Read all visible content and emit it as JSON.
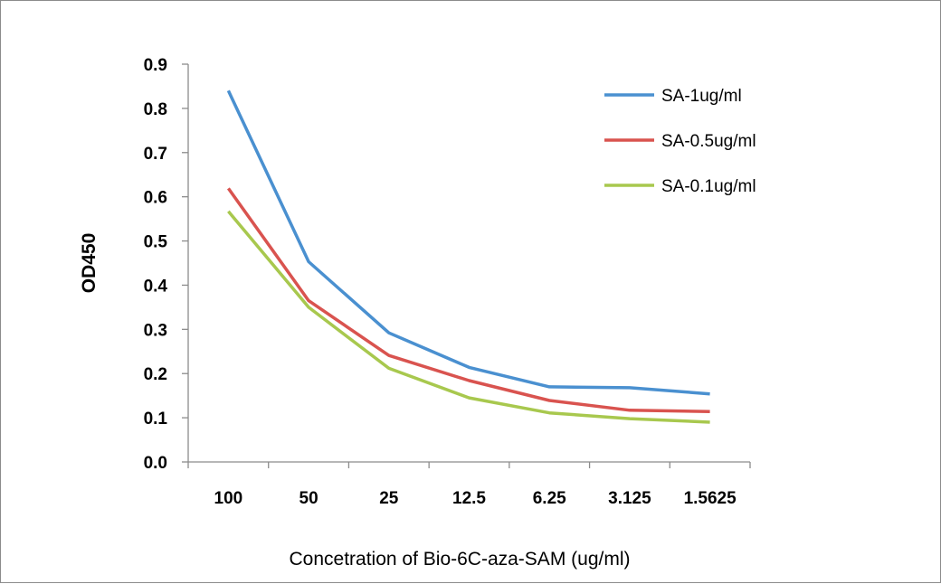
{
  "chart_data": {
    "type": "line",
    "xlabel": "Concetration of Bio-6C-aza-SAM (ug/ml)",
    "ylabel": "OD450",
    "categories": [
      "100",
      "50",
      "25",
      "12.5",
      "6.25",
      "3.125",
      "1.5625"
    ],
    "ylim": [
      0,
      0.9
    ],
    "yticks": [
      "0.0",
      "0.1",
      "0.2",
      "0.3",
      "0.4",
      "0.5",
      "0.6",
      "0.7",
      "0.8",
      "0.9"
    ],
    "grid": false,
    "legend_position": "top-right",
    "series": [
      {
        "name": "SA-1ug/ml",
        "color": "#4a90d0",
        "values": [
          0.84,
          0.453,
          0.292,
          0.214,
          0.17,
          0.168,
          0.154
        ]
      },
      {
        "name": "SA-0.5ug/ml",
        "color": "#d9534f",
        "values": [
          0.619,
          0.365,
          0.241,
          0.184,
          0.139,
          0.117,
          0.114
        ]
      },
      {
        "name": "SA-0.1ug/ml",
        "color": "#a8c84e",
        "values": [
          0.567,
          0.35,
          0.212,
          0.145,
          0.111,
          0.098,
          0.09
        ]
      }
    ]
  }
}
